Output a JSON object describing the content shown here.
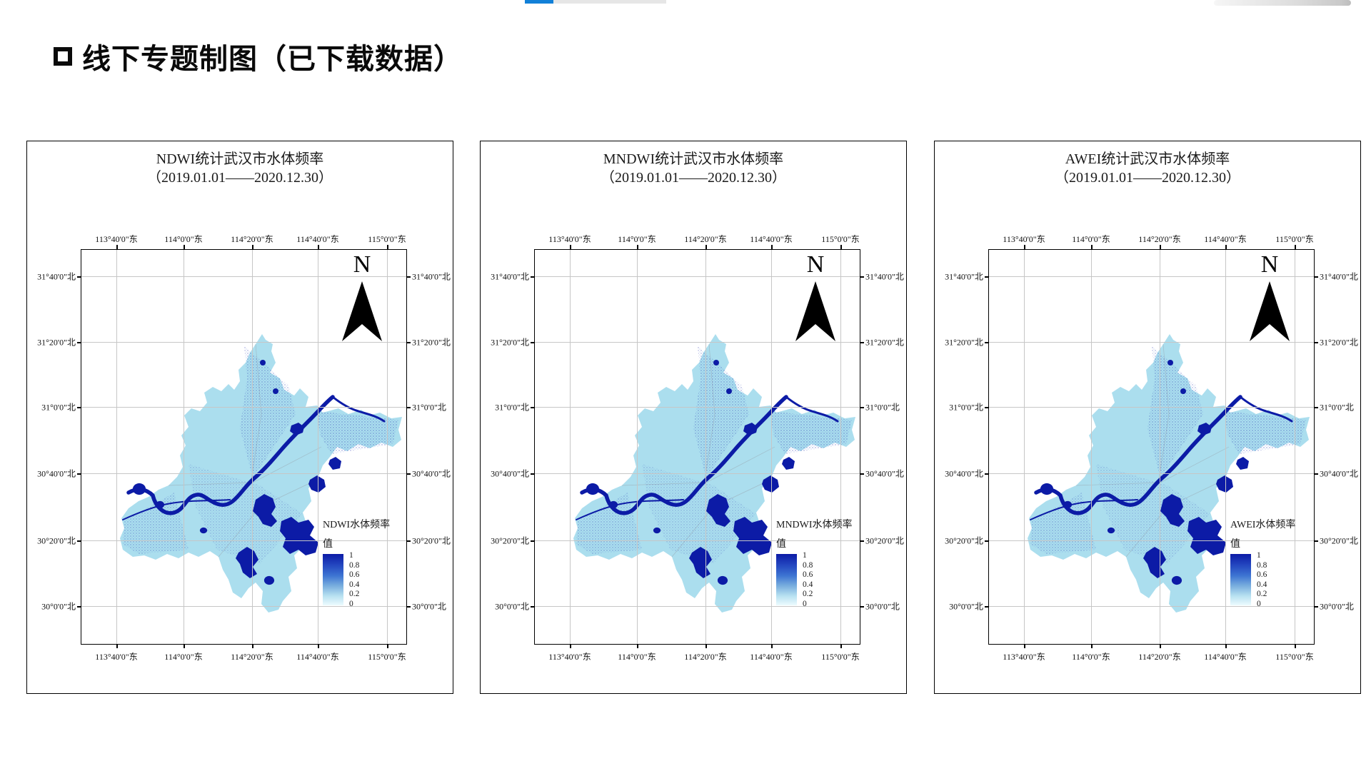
{
  "page": {
    "title": "线下专题制图（已下载数据）"
  },
  "colors": {
    "accent_blue": "#1180d8",
    "water_dark": "#0c1ba6",
    "land_light": "#abdeee",
    "grid_gray": "#c6c6c6"
  },
  "axes": {
    "lon_labels": [
      "113°40'0\"东",
      "114°0'0\"东",
      "114°20'0\"东",
      "114°40'0\"东",
      "115°0'0\"东"
    ],
    "lat_labels": [
      "31°40'0\"北",
      "31°20'0\"北",
      "31°0'0\"北",
      "30°40'0\"北",
      "30°20'0\"北",
      "30°0'0\"北"
    ],
    "lon_x": [
      49,
      143,
      239,
      331,
      428
    ],
    "lat_y": [
      37,
      129,
      220,
      313,
      407,
      499
    ]
  },
  "legend_ticks": [
    "1",
    "0.8",
    "0.6",
    "0.4",
    "0.2",
    "0"
  ],
  "maps": [
    {
      "title": "NDWI统计武汉市水体频率",
      "subtitle": "（2019.01.01——2020.12.30）",
      "legend_title": "NDWI水体频率",
      "legend_value_label": "值",
      "north_label": "N"
    },
    {
      "title": "MNDWI统计武汉市水体频率",
      "subtitle": "（2019.01.01——2020.12.30）",
      "legend_title": "MNDWI水体频率",
      "legend_value_label": "值",
      "north_label": "N"
    },
    {
      "title": "AWEI统计武汉市水体频率",
      "subtitle": "（2019.01.01——2020.12.30）",
      "legend_title": "AWEI水体频率",
      "legend_value_label": "值",
      "north_label": "N"
    }
  ]
}
